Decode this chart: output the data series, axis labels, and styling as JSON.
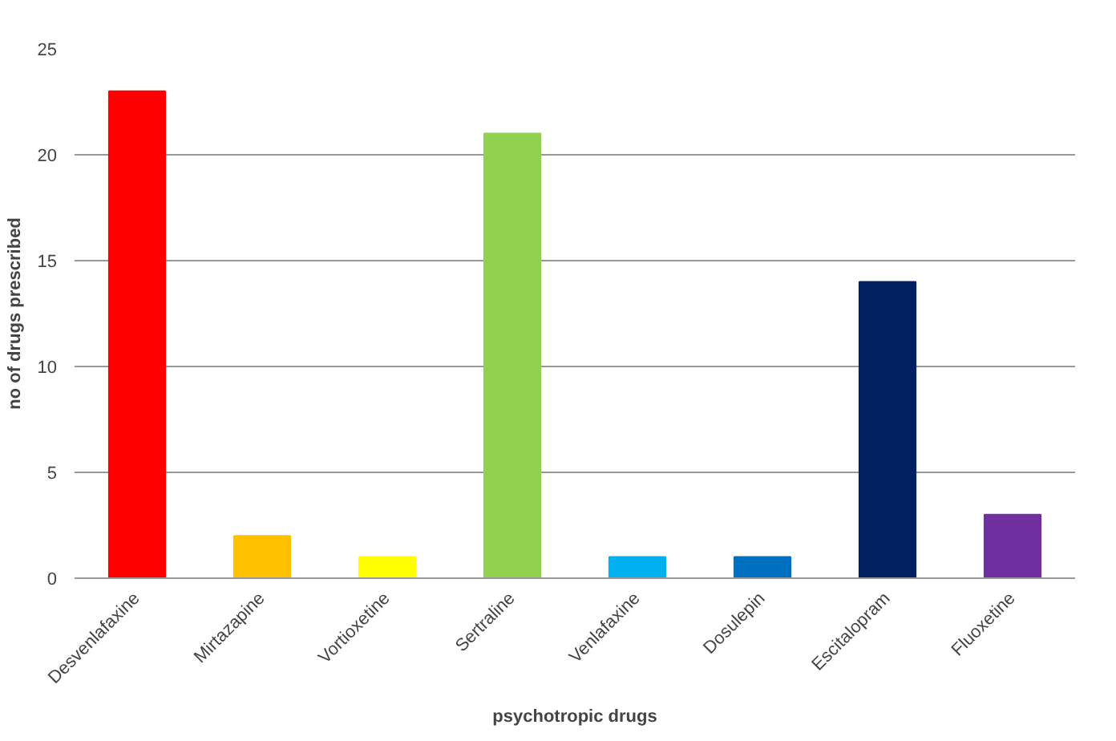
{
  "chart_data": {
    "type": "bar",
    "xlabel": "psychotropic drugs",
    "ylabel": "no of drugs prescribed",
    "categories": [
      "Desvenlafaxine",
      "Mirtazapine",
      "Vortioxetine",
      "Sertraline",
      "Venlafaxine",
      "Dosulepin",
      "Escitalopram",
      "Fluoxetine"
    ],
    "values": [
      23,
      2,
      1,
      21,
      1,
      1,
      14,
      3
    ],
    "colors": [
      "#ff0000",
      "#ffc000",
      "#ffff00",
      "#92d050",
      "#00b0f0",
      "#0070c0",
      "#002060",
      "#7030a0"
    ],
    "ylim": [
      0,
      25
    ],
    "yticks": [
      0,
      5,
      10,
      15,
      20,
      25
    ],
    "grid": "y"
  }
}
